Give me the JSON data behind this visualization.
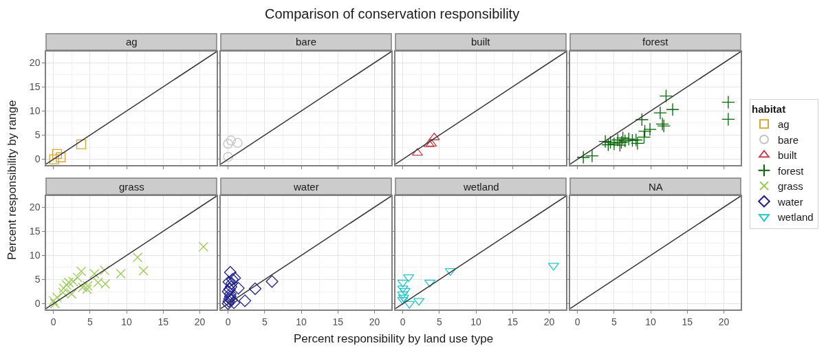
{
  "chart_data": [
    {
      "type": "other",
      "title": "Comparison of conservation responsibility"
    },
    {
      "type": "scatter",
      "subtitle": "ag",
      "ylabel": "Percent responsibility by range",
      "legend_title": "habitat",
      "legend": "right",
      "grid": true,
      "tick_labels": "y",
      "xlim": [
        -1,
        22.3
      ],
      "ylim": [
        -1.2,
        22.3
      ],
      "xticks": [
        0,
        5,
        10,
        15,
        20
      ],
      "yticks": [
        0,
        5,
        10,
        15,
        20
      ],
      "series": [
        {
          "name": "ag",
          "color": "#dba531",
          "marker": "square",
          "x": [
            0.1,
            0.5,
            1.0,
            3.8
          ],
          "values": [
            0,
            1.1,
            0.4,
            3.1
          ]
        },
        {
          "type": "line",
          "color": "#333333",
          "marker": "none",
          "x": [
            -1,
            22.3
          ],
          "values": [
            -1,
            22.3
          ]
        }
      ]
    },
    {
      "type": "scatter",
      "subtitle": "bare",
      "legend": "right",
      "grid": true,
      "tick_labels": false,
      "xlim": [
        -1,
        22.3
      ],
      "ylim": [
        -1.2,
        22.3
      ],
      "xticks": [
        0,
        5,
        10,
        15,
        20
      ],
      "yticks": [
        0,
        5,
        10,
        15,
        20
      ],
      "series": [
        {
          "name": "bare",
          "color": "#c4c4c4",
          "marker": "circle",
          "x": [
            0,
            0.4,
            1.3,
            0
          ],
          "values": [
            3.2,
            3.9,
            3.4,
            0.5
          ]
        },
        {
          "type": "line",
          "color": "#333333",
          "marker": "none",
          "x": [
            -1,
            22.3
          ],
          "values": [
            -1,
            22.3
          ]
        }
      ]
    },
    {
      "type": "scatter",
      "subtitle": "built",
      "legend": "right",
      "grid": true,
      "tick_labels": false,
      "xlim": [
        -1,
        22.3
      ],
      "ylim": [
        -1.2,
        22.3
      ],
      "xticks": [
        0,
        5,
        10,
        15,
        20
      ],
      "yticks": [
        0,
        5,
        10,
        15,
        20
      ],
      "series": [
        {
          "name": "built",
          "color": "#c6404a",
          "marker": "triangle",
          "x": [
            2.0,
            3.6,
            3.9,
            4.3
          ],
          "values": [
            1.3,
            3.1,
            3.2,
            4.5
          ]
        },
        {
          "type": "line",
          "color": "#333333",
          "marker": "none",
          "x": [
            -1,
            22.3
          ],
          "values": [
            -1,
            22.3
          ]
        }
      ]
    },
    {
      "type": "scatter",
      "subtitle": "forest",
      "legend": "right",
      "grid": true,
      "tick_labels": false,
      "xlim": [
        -1,
        22.3
      ],
      "ylim": [
        -1.2,
        22.3
      ],
      "xticks": [
        0,
        5,
        10,
        15,
        20
      ],
      "yticks": [
        0,
        5,
        10,
        15,
        20
      ],
      "series": [
        {
          "name": "forest",
          "color": "#006400",
          "marker": "cross",
          "x": [
            0.8,
            2.0,
            3.8,
            4.2,
            4.5,
            5.0,
            5.5,
            5.8,
            6.0,
            6.2,
            6.5,
            7.0,
            7.5,
            8.0,
            8.2,
            8.8,
            9.1,
            9.2,
            9.9,
            11.3,
            11.6,
            11.8,
            12.1,
            13.0,
            20.6,
            20.6
          ],
          "values": [
            0.4,
            0.7,
            3.7,
            3.0,
            3.5,
            3.2,
            4.0,
            2.9,
            3.5,
            4.4,
            3.8,
            4.2,
            3.9,
            4.0,
            3.3,
            8.2,
            4.6,
            5.8,
            6.2,
            9.6,
            7.3,
            6.9,
            13.1,
            10.3,
            11.8,
            8.3
          ]
        },
        {
          "type": "line",
          "color": "#333333",
          "marker": "none",
          "x": [
            -1,
            22.3
          ],
          "values": [
            -1,
            22.3
          ]
        }
      ]
    },
    {
      "type": "scatter",
      "subtitle": "grass",
      "legend": "right",
      "grid": true,
      "xlim": [
        -1,
        22.3
      ],
      "ylim": [
        -1.2,
        22.3
      ],
      "xticks": [
        0,
        5,
        10,
        15,
        20
      ],
      "yticks": [
        0,
        5,
        10,
        15,
        20
      ],
      "series": [
        {
          "name": "grass",
          "color": "#9acb55",
          "marker": "x",
          "x": [
            20.5,
            11.5,
            12.3,
            9.2,
            7.0,
            7.1,
            6.1,
            5.6,
            3.8,
            4.6,
            4.7,
            4.0,
            2.7,
            2.1,
            1.8,
            1.4,
            2.5,
            0.5,
            0,
            0.2,
            3.3,
            1.3
          ],
          "values": [
            11.8,
            9.6,
            6.8,
            6.2,
            6.9,
            4.1,
            4.4,
            6.2,
            6.7,
            3.0,
            3.7,
            3.4,
            4.6,
            4.4,
            3.9,
            3.2,
            2.0,
            1.3,
            0.6,
            0,
            5.4,
            2.3
          ]
        },
        {
          "type": "line",
          "color": "#333333",
          "marker": "none",
          "x": [
            -1,
            22.3
          ],
          "values": [
            -1,
            22.3
          ]
        }
      ]
    },
    {
      "type": "scatter",
      "subtitle": "water",
      "xlabel": "Percent responsibility by land use type",
      "legend": "right",
      "grid": true,
      "tick_labels": "x",
      "xlim": [
        -1,
        22.3
      ],
      "ylim": [
        -1.2,
        22.3
      ],
      "xticks": [
        0,
        5,
        10,
        15,
        20
      ],
      "yticks": [
        0,
        5,
        10,
        15,
        20
      ],
      "series": [
        {
          "name": "water",
          "color": "#1f1f8f",
          "marker": "diamond",
          "x": [
            6.0,
            3.7,
            2.3,
            0.3,
            0.9,
            1.4,
            0,
            0.1,
            0.2,
            0.3,
            0,
            0.4,
            0.5,
            0.1,
            0.6,
            0.2,
            0.3,
            0.8,
            0.5
          ],
          "values": [
            4.6,
            3.1,
            0.6,
            6.5,
            5.3,
            3.2,
            0,
            0.5,
            1.0,
            2.0,
            2.5,
            3.5,
            4.2,
            4.5,
            5.0,
            3.0,
            1.5,
            0.2,
            0.8
          ]
        },
        {
          "type": "line",
          "color": "#333333",
          "marker": "none",
          "x": [
            -1,
            22.3
          ],
          "values": [
            -1,
            22.3
          ]
        }
      ]
    },
    {
      "type": "scatter",
      "subtitle": "wetland",
      "legend": "right",
      "grid": true,
      "tick_labels": "x",
      "xlim": [
        -1,
        22.3
      ],
      "ylim": [
        -1.2,
        22.3
      ],
      "xticks": [
        0,
        5,
        10,
        15,
        20
      ],
      "yticks": [
        0,
        5,
        10,
        15,
        20
      ],
      "series": [
        {
          "name": "wetland",
          "color": "#22c4c8",
          "marker": "triangle-down",
          "x": [
            20.6,
            6.5,
            3.7,
            2.2,
            0.8,
            0,
            0,
            0,
            0.1,
            0.9,
            0,
            0.3
          ],
          "values": [
            7.9,
            6.8,
            4.4,
            0.6,
            5.5,
            4.4,
            3.2,
            2.0,
            1.3,
            0,
            0.8,
            2.7
          ]
        },
        {
          "type": "line",
          "color": "#333333",
          "marker": "none",
          "x": [
            -1,
            22.3
          ],
          "values": [
            -1,
            22.3
          ]
        }
      ]
    },
    {
      "type": "scatter",
      "subtitle": "NA",
      "grid": true,
      "tick_labels": "x",
      "xlim": [
        -1,
        22.3
      ],
      "ylim": [
        -1.2,
        22.3
      ],
      "xticks": [
        0,
        5,
        10,
        15,
        20
      ],
      "yticks": [
        0,
        5,
        10,
        15,
        20
      ],
      "series": [
        {
          "type": "line",
          "color": "#333333",
          "marker": "none",
          "x": [
            -1,
            22.3
          ],
          "values": [
            -1,
            22.3
          ]
        }
      ]
    }
  ]
}
